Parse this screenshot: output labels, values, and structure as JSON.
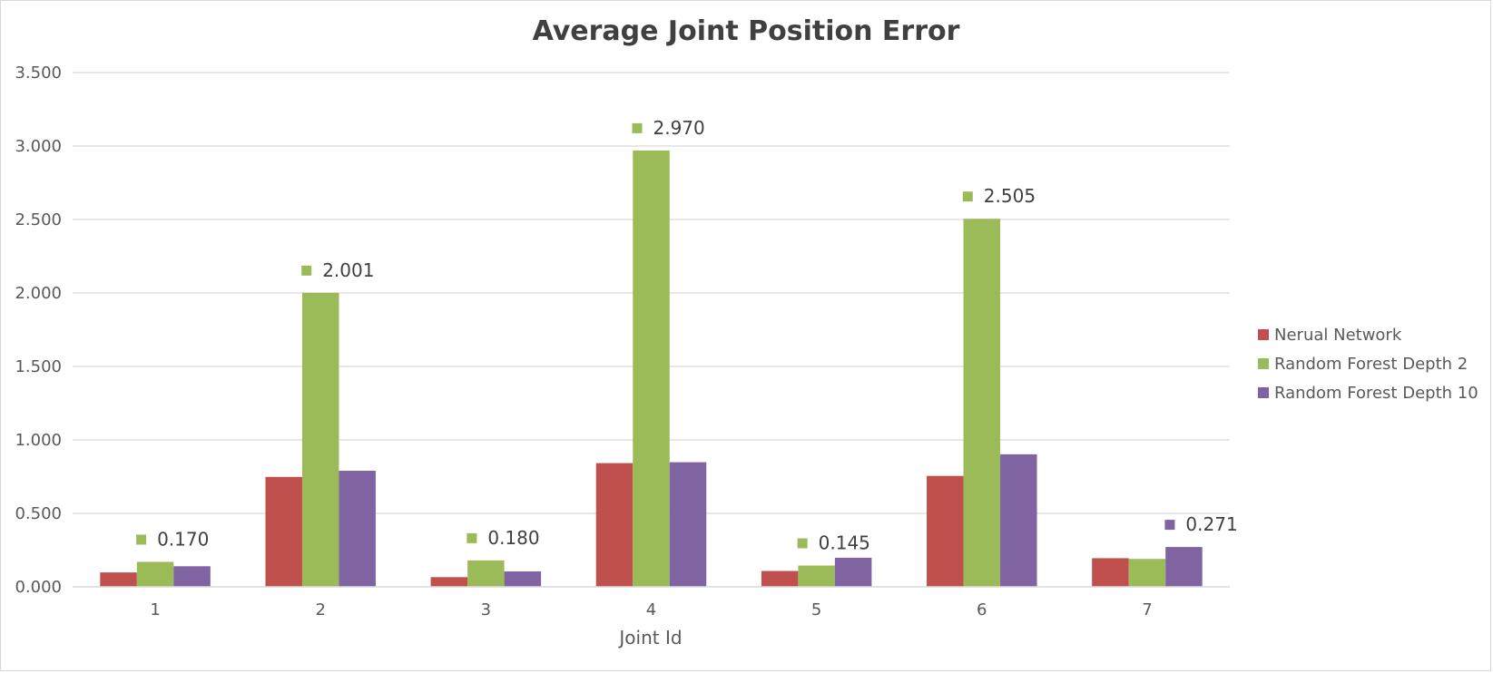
{
  "chart_data": {
    "type": "bar",
    "title": "Average Joint Position Error",
    "xlabel": "Joint Id",
    "ylabel": "",
    "categories": [
      "1",
      "2",
      "3",
      "4",
      "5",
      "6",
      "7"
    ],
    "ylim": [
      0,
      3.5
    ],
    "yticks": [
      0,
      0.5,
      1.0,
      1.5,
      2.0,
      2.5,
      3.0,
      3.5
    ],
    "ytick_labels": [
      "0.000",
      "0.500",
      "1.000",
      "1.500",
      "2.000",
      "2.500",
      "3.000",
      "3.500"
    ],
    "grid": true,
    "legend_position": "right",
    "series": [
      {
        "name": "Nerual Network",
        "color": "#c0504d",
        "values": [
          0.098,
          0.748,
          0.066,
          0.842,
          0.108,
          0.755,
          0.195
        ]
      },
      {
        "name": "Random Forest Depth 2",
        "color": "#9bbb59",
        "values": [
          0.17,
          2.001,
          0.18,
          2.97,
          0.145,
          2.505,
          0.19
        ]
      },
      {
        "name": "Random Forest Depth 10",
        "color": "#8064a2",
        "values": [
          0.14,
          0.79,
          0.105,
          0.848,
          0.198,
          0.902,
          0.271
        ]
      }
    ],
    "data_labels": [
      {
        "category": "1",
        "series": 1,
        "text": "0.170"
      },
      {
        "category": "2",
        "series": 1,
        "text": "2.001"
      },
      {
        "category": "3",
        "series": 1,
        "text": "0.180"
      },
      {
        "category": "4",
        "series": 1,
        "text": "2.970"
      },
      {
        "category": "5",
        "series": 1,
        "text": "0.145"
      },
      {
        "category": "6",
        "series": 1,
        "text": "2.505"
      },
      {
        "category": "7",
        "series": 2,
        "text": "0.271"
      }
    ]
  }
}
